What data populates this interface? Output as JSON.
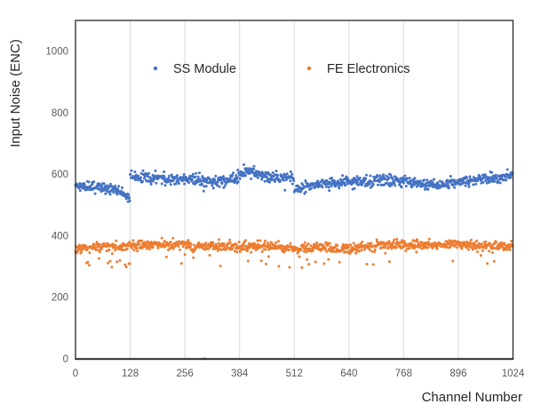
{
  "chart_data": {
    "type": "scatter",
    "title": "",
    "xlabel": "Channel Number",
    "ylabel": "Input Noise (ENC)",
    "xlim": [
      0,
      1024
    ],
    "ylim": [
      0,
      1100
    ],
    "x_ticks": [
      0,
      128,
      256,
      384,
      512,
      640,
      768,
      896,
      1024
    ],
    "y_ticks": [
      0,
      200,
      400,
      600,
      800,
      1000
    ],
    "grid": "vertical-only",
    "grid_color": "#D9D9D9",
    "frame_color": "#262626",
    "axis_line_color": "#1a1a1a",
    "tick_label_color": "#595959",
    "axis_title_color": "#262626",
    "background": "#FFFFFF",
    "legend": {
      "position": "inside-top",
      "entries": [
        "SS Module",
        "FE Electronics"
      ]
    },
    "seed": 1306,
    "series": [
      {
        "name": "SS Module",
        "color": "#4472C4",
        "marker": "dot",
        "channels": 1024,
        "band_description": "noise band ~520-645 ENC with steps at 128-channel chip boundaries; dip at end of chip 0, bump after channel 384, drop after 512, rise toward 1024",
        "mean_anchors": [
          [
            0,
            566
          ],
          [
            40,
            560
          ],
          [
            80,
            554
          ],
          [
            100,
            548
          ],
          [
            112,
            536
          ],
          [
            127,
            518
          ],
          [
            128,
            588
          ],
          [
            160,
            590
          ],
          [
            224,
            586
          ],
          [
            256,
            584
          ],
          [
            320,
            578
          ],
          [
            360,
            580
          ],
          [
            384,
            598
          ],
          [
            400,
            613
          ],
          [
            420,
            604
          ],
          [
            448,
            592
          ],
          [
            480,
            590
          ],
          [
            511,
            592
          ],
          [
            512,
            556
          ],
          [
            528,
            551
          ],
          [
            544,
            562
          ],
          [
            576,
            568
          ],
          [
            640,
            576
          ],
          [
            704,
            580
          ],
          [
            768,
            576
          ],
          [
            800,
            570
          ],
          [
            832,
            567
          ],
          [
            880,
            570
          ],
          [
            896,
            574
          ],
          [
            928,
            580
          ],
          [
            968,
            586
          ],
          [
            1000,
            590
          ],
          [
            1023,
            603
          ]
        ],
        "noise_std": 9,
        "low_outlier_rate": 0.012,
        "low_outlier_depth": [
          10,
          35
        ],
        "fixed_outliers": []
      },
      {
        "name": "FE Electronics",
        "color": "#ED7D31",
        "marker": "dot",
        "channels": 1024,
        "band_description": "flat noise band ~340-395 ENC centered near 365 with scattered low outliers down to ~290 (densest in channels 0-128) and one dead channel at ~302 reading 0",
        "mean_anchors": [
          [
            0,
            352
          ],
          [
            16,
            360
          ],
          [
            64,
            363
          ],
          [
            128,
            368
          ],
          [
            192,
            372
          ],
          [
            256,
            370
          ],
          [
            320,
            367
          ],
          [
            384,
            364
          ],
          [
            448,
            367
          ],
          [
            480,
            362
          ],
          [
            512,
            359
          ],
          [
            576,
            362
          ],
          [
            608,
            358
          ],
          [
            640,
            361
          ],
          [
            672,
            366
          ],
          [
            704,
            369
          ],
          [
            768,
            371
          ],
          [
            832,
            373
          ],
          [
            896,
            371
          ],
          [
            960,
            367
          ],
          [
            1023,
            363
          ]
        ],
        "noise_std": 8,
        "low_outlier_rate": 0.04,
        "low_outlier_depth": [
          15,
          60
        ],
        "extra_outlier_region": {
          "range": [
            0,
            128
          ],
          "rate": 0.08,
          "depth": [
            20,
            75
          ]
        },
        "fixed_outliers": [
          [
            302,
            0
          ]
        ]
      }
    ]
  }
}
